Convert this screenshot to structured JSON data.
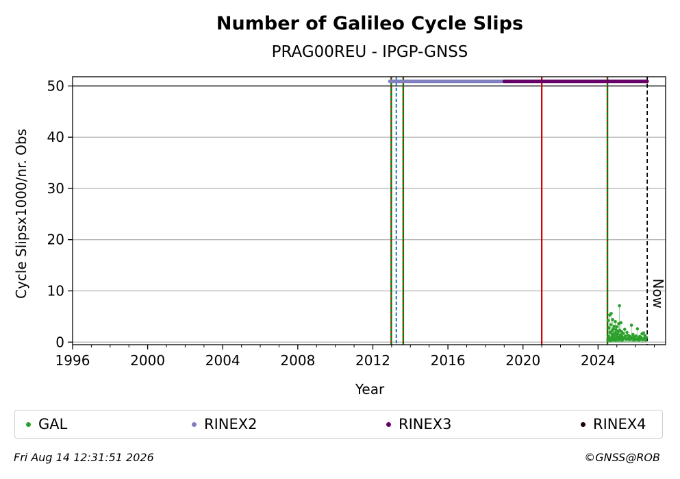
{
  "chart_data": {
    "type": "scatter",
    "title": "Number of Galileo Cycle Slips",
    "subtitle": "PRAG00REU - IPGP-GNSS",
    "xlabel": "Year",
    "ylabel": "Cycle Slipsx1000/nr. Obs",
    "xlim": [
      1996,
      2027.6
    ],
    "ylim": [
      -0.5,
      51.8
    ],
    "xticks": [
      1996,
      2000,
      2004,
      2008,
      2012,
      2016,
      2020,
      2024
    ],
    "yticks": [
      0,
      10,
      20,
      30,
      40,
      50
    ],
    "grid": "horizontal",
    "reference_line_y": 50,
    "now_label": "Now",
    "now_x": 2026.62,
    "vertical_lines": [
      {
        "x": 2012.98,
        "style": "green-red-dashed",
        "color": "#008000"
      },
      {
        "x": 2013.25,
        "style": "dashed",
        "color": "#1f77b4"
      },
      {
        "x": 2013.62,
        "style": "green-red-dashed",
        "color": "#008000"
      },
      {
        "x": 2021.0,
        "style": "solid",
        "color": "#cc0000"
      },
      {
        "x": 2024.5,
        "style": "green-red-dashed",
        "color": "#008000"
      }
    ],
    "rinex_bars": [
      {
        "name": "RINEX2",
        "x0": 2012.9,
        "x1": 2019.0,
        "y": 50.9,
        "color": "#8080c0"
      },
      {
        "name": "RINEX3",
        "x0": 2019.0,
        "x1": 2026.62,
        "y": 50.9,
        "color": "#660066"
      }
    ],
    "series": [
      {
        "name": "GAL",
        "color": "#2ca02c",
        "points": [
          [
            2024.52,
            0.4
          ],
          [
            2024.54,
            4.2
          ],
          [
            2024.56,
            1.1
          ],
          [
            2024.58,
            2.8
          ],
          [
            2024.6,
            0.6
          ],
          [
            2024.62,
            5.3
          ],
          [
            2024.64,
            1.9
          ],
          [
            2024.66,
            0.3
          ],
          [
            2024.68,
            3.4
          ],
          [
            2024.7,
            5.6
          ],
          [
            2024.72,
            0.9
          ],
          [
            2024.74,
            2.2
          ],
          [
            2024.76,
            1.5
          ],
          [
            2024.78,
            4.4
          ],
          [
            2024.8,
            0.5
          ],
          [
            2024.82,
            2.6
          ],
          [
            2024.84,
            1.2
          ],
          [
            2024.86,
            3.1
          ],
          [
            2024.88,
            0.7
          ],
          [
            2024.9,
            1.8
          ],
          [
            2024.92,
            4.0
          ],
          [
            2024.94,
            0.4
          ],
          [
            2024.96,
            2.4
          ],
          [
            2024.98,
            1.3
          ],
          [
            2025.0,
            3.0
          ],
          [
            2025.02,
            0.8
          ],
          [
            2025.04,
            1.6
          ],
          [
            2025.06,
            2.1
          ],
          [
            2025.08,
            0.5
          ],
          [
            2025.1,
            3.6
          ],
          [
            2025.12,
            1.0
          ],
          [
            2025.14,
            7.1
          ],
          [
            2025.16,
            2.3
          ],
          [
            2025.18,
            0.6
          ],
          [
            2025.2,
            1.4
          ],
          [
            2025.22,
            3.8
          ],
          [
            2025.24,
            0.9
          ],
          [
            2025.26,
            2.0
          ],
          [
            2025.28,
            1.1
          ],
          [
            2025.3,
            0.4
          ],
          [
            2025.34,
            1.7
          ],
          [
            2025.38,
            0.8
          ],
          [
            2025.42,
            2.5
          ],
          [
            2025.46,
            1.2
          ],
          [
            2025.5,
            0.6
          ],
          [
            2025.54,
            1.9
          ],
          [
            2025.58,
            0.7
          ],
          [
            2025.62,
            1.3
          ],
          [
            2025.66,
            0.5
          ],
          [
            2025.7,
            1.1
          ],
          [
            2025.74,
            0.6
          ],
          [
            2025.78,
            3.3
          ],
          [
            2025.82,
            0.9
          ],
          [
            2025.86,
            1.5
          ],
          [
            2025.9,
            0.4
          ],
          [
            2025.94,
            1.0
          ],
          [
            2025.98,
            0.7
          ],
          [
            2026.02,
            1.2
          ],
          [
            2026.06,
            0.5
          ],
          [
            2026.1,
            2.6
          ],
          [
            2026.14,
            0.8
          ],
          [
            2026.18,
            0.4
          ],
          [
            2026.22,
            1.1
          ],
          [
            2026.26,
            0.6
          ],
          [
            2026.3,
            0.9
          ],
          [
            2026.34,
            1.6
          ],
          [
            2026.38,
            0.5
          ],
          [
            2026.42,
            1.8
          ],
          [
            2026.46,
            0.7
          ],
          [
            2026.5,
            1.3
          ],
          [
            2026.54,
            0.4
          ],
          [
            2026.58,
            0.9
          ]
        ]
      }
    ],
    "legend": {
      "placement": "bottom",
      "entries": [
        {
          "name": "GAL",
          "color": "#2ca02c"
        },
        {
          "name": "RINEX2",
          "color": "#8080c0"
        },
        {
          "name": "RINEX3",
          "color": "#660066"
        },
        {
          "name": "RINEX4",
          "color": "#1a0010"
        }
      ]
    }
  },
  "footer": {
    "timestamp": "Fri Aug 14 12:31:51 2026",
    "copyright": "©GNSS@ROB"
  }
}
